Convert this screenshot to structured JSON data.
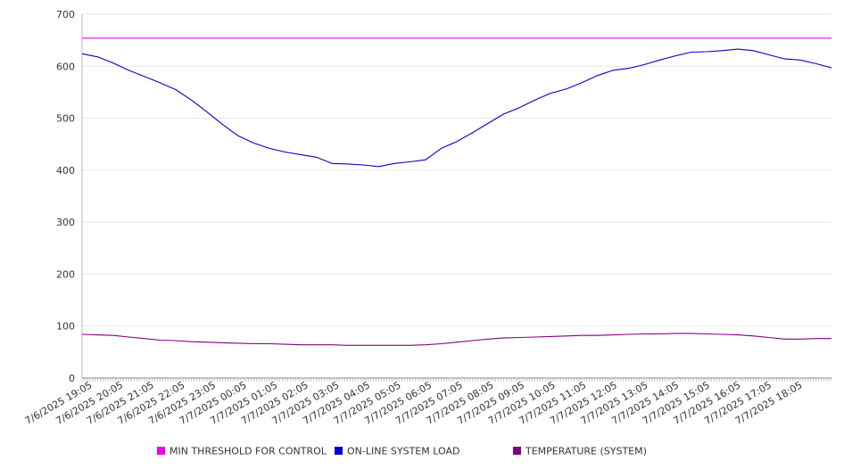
{
  "chart_data": {
    "type": "line",
    "title": "",
    "xlabel": "",
    "ylabel": "",
    "ylim": [
      0,
      700
    ],
    "yticks": [
      0,
      100,
      200,
      300,
      400,
      500,
      600,
      700
    ],
    "grid": true,
    "legend_position": "bottom",
    "x_tick_labels": [
      "7/6/2025 19:05",
      "7/6/2025 20:05",
      "7/6/2025 21:05",
      "7/6/2025 22:05",
      "7/6/2025 23:05",
      "7/7/2025 00:05",
      "7/7/2025 01:05",
      "7/7/2025 02:05",
      "7/7/2025 03:05",
      "7/7/2025 04:05",
      "7/7/2025 05:05",
      "7/7/2025 06:05",
      "7/7/2025 07:05",
      "7/7/2025 08:05",
      "7/7/2025 09:05",
      "7/7/2025 10:05",
      "7/7/2025 11:05",
      "7/7/2025 12:05",
      "7/7/2025 13:05",
      "7/7/2025 14:05",
      "7/7/2025 15:05",
      "7/7/2025 16:05",
      "7/7/2025 17:05",
      "7/7/2025 18:05"
    ],
    "x_hours": [
      0,
      0.5,
      1,
      1.5,
      2,
      2.5,
      3,
      3.5,
      4,
      4.5,
      5,
      5.5,
      6,
      6.5,
      7,
      7.5,
      8,
      8.5,
      9,
      9.5,
      10,
      10.5,
      11,
      11.5,
      12,
      12.5,
      13,
      13.5,
      14,
      14.5,
      15,
      15.5,
      16,
      16.5,
      17,
      17.5,
      18,
      18.5,
      19,
      19.5,
      20,
      20.5,
      21,
      21.5,
      22,
      22.5,
      23,
      23.5,
      24
    ],
    "series": [
      {
        "name": "MIN THRESHOLD FOR CONTROL",
        "color": "#ee00ee",
        "values": [
          654,
          654,
          654,
          654,
          654,
          654,
          654,
          654,
          654,
          654,
          654,
          654,
          654,
          654,
          654,
          654,
          654,
          654,
          654,
          654,
          654,
          654,
          654,
          654,
          654,
          654,
          654,
          654,
          654,
          654,
          654,
          654,
          654,
          654,
          654,
          654,
          654,
          654,
          654,
          654,
          654,
          654,
          654,
          654,
          654,
          654,
          654,
          654,
          654
        ]
      },
      {
        "name": "ON-LINE SYSTEM LOAD",
        "color": "#0000cc",
        "values": [
          624,
          618,
          606,
          592,
          580,
          568,
          555,
          535,
          512,
          488,
          466,
          452,
          442,
          435,
          430,
          425,
          413,
          412,
          410,
          407,
          413,
          416,
          420,
          442,
          455,
          472,
          490,
          508,
          520,
          535,
          548,
          556,
          568,
          582,
          592,
          596,
          603,
          612,
          620,
          627,
          628,
          630,
          633,
          630,
          622,
          614,
          612,
          605,
          597
        ]
      },
      {
        "name": "TEMPERATURE (SYSTEM)",
        "color": "#800080",
        "values": [
          84,
          83,
          82,
          79,
          76,
          73,
          72,
          70,
          69,
          68,
          67,
          66,
          66,
          65,
          64,
          64,
          64,
          63,
          63,
          63,
          63,
          63,
          64,
          66,
          69,
          72,
          75,
          77,
          78,
          79,
          80,
          81,
          82,
          82,
          83,
          84,
          85,
          85,
          86,
          86,
          85,
          84,
          83,
          81,
          78,
          75,
          75,
          76,
          76
        ]
      }
    ]
  }
}
